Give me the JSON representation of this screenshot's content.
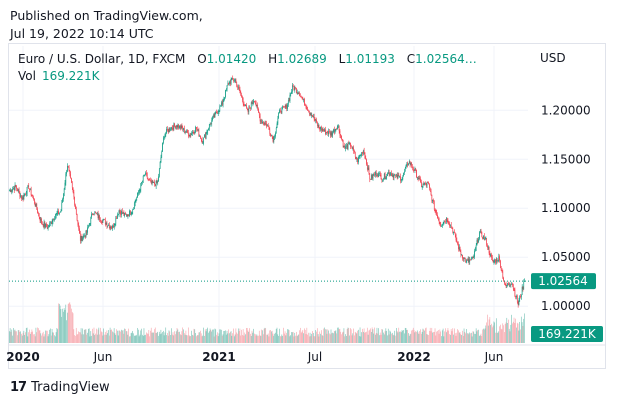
{
  "header": {
    "published_line1": "Published on TradingView.com,",
    "published_line2": "Jul 19, 2022 10:14 UTC"
  },
  "legend": {
    "symbol": "Euro / U.S. Dollar, 1D, FXCM",
    "o_label": "O",
    "o_value": "1.01420",
    "h_label": "H",
    "h_value": "1.02689",
    "l_label": "L",
    "l_value": "1.01193",
    "c_label": "C",
    "c_value": "1.02564…",
    "vol_label": "Vol",
    "vol_value": "169.221K"
  },
  "currency": "USD",
  "price_badge": "1.02564",
  "volume_badge": "169.221K",
  "brand": "TradingView",
  "colors": {
    "up": "#089981",
    "down": "#f23645",
    "vol_up": "#7cc4b8",
    "vol_down": "#f7a8ae",
    "badge": "#089981"
  },
  "chart_data": {
    "type": "candlestick",
    "price_axis": {
      "ticks": [
        "1.20000",
        "1.15000",
        "1.10000",
        "1.05000",
        "1.00000"
      ],
      "range": [
        0.99,
        1.235
      ]
    },
    "time_axis": {
      "ticks": [
        "2020",
        "Jun",
        "2021",
        "Jul",
        "2022",
        "Jun"
      ],
      "bold": [
        "2020",
        "2021",
        "2022"
      ]
    },
    "last_price": 1.02564,
    "points": [
      1.118,
      1.122,
      1.11,
      1.122,
      1.104,
      1.085,
      1.08,
      1.092,
      1.097,
      1.145,
      1.112,
      1.068,
      1.075,
      1.097,
      1.09,
      1.085,
      1.08,
      1.098,
      1.092,
      1.097,
      1.115,
      1.135,
      1.125,
      1.125,
      1.175,
      1.182,
      1.185,
      1.18,
      1.175,
      1.182,
      1.168,
      1.184,
      1.196,
      1.206,
      1.228,
      1.232,
      1.214,
      1.198,
      1.212,
      1.19,
      1.185,
      1.17,
      1.2,
      1.203,
      1.224,
      1.218,
      1.205,
      1.195,
      1.183,
      1.178,
      1.176,
      1.185,
      1.161,
      1.165,
      1.148,
      1.16,
      1.13,
      1.136,
      1.131,
      1.137,
      1.132,
      1.131,
      1.148,
      1.138,
      1.123,
      1.125,
      1.1,
      1.083,
      1.09,
      1.075,
      1.055,
      1.045,
      1.048,
      1.075,
      1.067,
      1.045,
      1.049,
      1.02,
      1.025,
      1.002,
      1.026
    ]
  }
}
